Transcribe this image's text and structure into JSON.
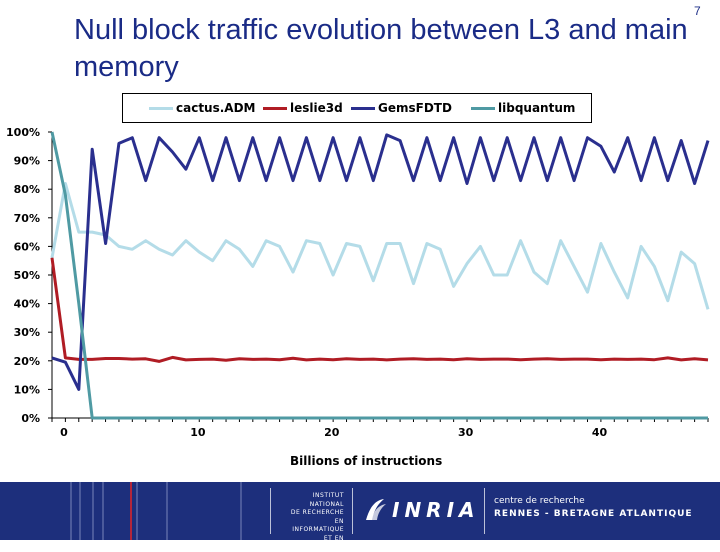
{
  "slide": {
    "title": "Null block traffic evolution between L3 and main memory",
    "page_number": "7"
  },
  "footer": {
    "institute_lines": [
      "INSTITUT NATIONAL",
      "DE RECHERCHE",
      "EN INFORMATIQUE",
      "ET EN AUTOMATIQUE"
    ],
    "logo_text": "INRIA",
    "center_line1": "centre de recherche",
    "center_line2": "RENNES - BRETAGNE ATLANTIQUE",
    "colors": {
      "background": "#1d2f7c",
      "accent": "#b3263a"
    }
  },
  "chart_data": {
    "type": "line",
    "xlabel": "Billions of instructions",
    "ylabel": "",
    "xlim": [
      0,
      49
    ],
    "ylim": [
      0,
      100
    ],
    "x_ticks": [
      0,
      10,
      20,
      30,
      40
    ],
    "x_tick_labels": [
      "0",
      "10",
      "20",
      "30",
      "40"
    ],
    "y_ticks": [
      0,
      10,
      20,
      30,
      40,
      50,
      60,
      70,
      80,
      90,
      100
    ],
    "y_tick_labels": [
      "0%",
      "10%",
      "20%",
      "30%",
      "40%",
      "50%",
      "60%",
      "70%",
      "80%",
      "90%",
      "100%"
    ],
    "grid": false,
    "legend_position": "top",
    "x": [
      0,
      1,
      2,
      3,
      4,
      5,
      6,
      7,
      8,
      9,
      10,
      11,
      12,
      13,
      14,
      15,
      16,
      17,
      18,
      19,
      20,
      21,
      22,
      23,
      24,
      25,
      26,
      27,
      28,
      29,
      30,
      31,
      32,
      33,
      34,
      35,
      36,
      37,
      38,
      39,
      40,
      41,
      42,
      43,
      44,
      45,
      46,
      47,
      48,
      49
    ],
    "series": [
      {
        "name": "cactus.ADM",
        "color": "#b4dce8",
        "values": [
          56,
          82,
          65,
          65,
          64,
          60,
          59,
          62,
          59,
          57,
          62,
          58,
          55,
          62,
          59,
          53,
          62,
          60,
          51,
          62,
          61,
          50,
          61,
          60,
          48,
          61,
          61,
          47,
          61,
          59,
          46,
          54,
          60,
          50,
          50,
          62,
          51,
          47,
          62,
          53,
          44,
          61,
          51,
          42,
          60,
          53,
          41,
          58,
          54,
          38
        ]
      },
      {
        "name": "leslie3d",
        "color": "#b01c24",
        "values": [
          56,
          21,
          20.5,
          20.5,
          20.8,
          20.8,
          20.6,
          20.7,
          19.8,
          21.2,
          20.3,
          20.5,
          20.6,
          20.2,
          20.7,
          20.5,
          20.6,
          20.4,
          20.9,
          20.3,
          20.6,
          20.4,
          20.7,
          20.5,
          20.6,
          20.3,
          20.6,
          20.7,
          20.5,
          20.6,
          20.4,
          20.7,
          20.5,
          20.6,
          20.6,
          20.4,
          20.6,
          20.7,
          20.5,
          20.6,
          20.6,
          20.4,
          20.6,
          20.5,
          20.6,
          20.4,
          21,
          20.3,
          20.7,
          20.3
        ]
      },
      {
        "name": "GemsFDTD",
        "color": "#2a2f8e",
        "values": [
          21,
          19.5,
          10,
          94,
          61,
          96,
          98,
          83,
          98,
          93,
          87,
          98,
          83,
          98,
          83,
          98,
          83,
          98,
          83,
          98,
          83,
          98,
          83,
          98,
          83,
          99,
          97,
          83,
          98,
          83,
          98,
          82,
          98,
          83,
          98,
          83,
          98,
          83,
          98,
          83,
          98,
          95,
          86,
          98,
          83,
          98,
          83,
          97,
          82,
          97
        ]
      },
      {
        "name": "libquantum",
        "color": "#4f9aa3",
        "values": [
          100,
          78,
          40,
          0,
          0,
          0,
          0,
          0,
          0,
          0,
          0,
          0,
          0,
          0,
          0,
          0,
          0,
          0,
          0,
          0,
          0,
          0,
          0,
          0,
          0,
          0,
          0,
          0,
          0,
          0,
          0,
          0,
          0,
          0,
          0,
          0,
          0,
          0,
          0,
          0,
          0,
          0,
          0,
          0,
          0,
          0,
          0,
          0,
          0,
          0
        ]
      }
    ]
  }
}
